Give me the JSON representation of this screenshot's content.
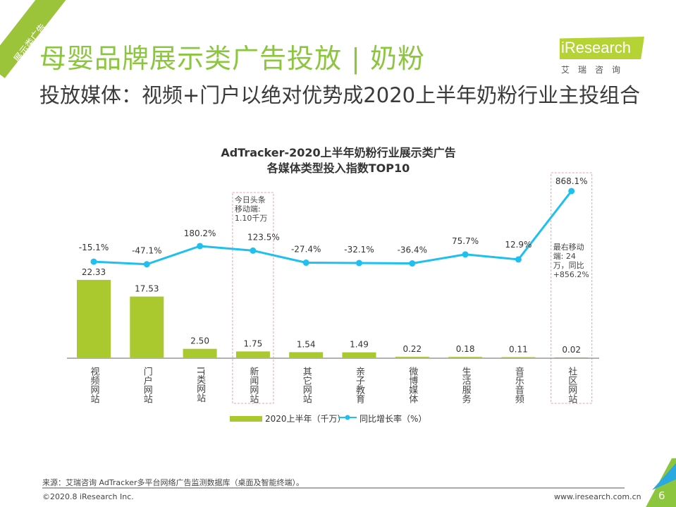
{
  "corner_tag": "展示类广告",
  "title": "母婴品牌展示类广告投放 | 奶粉",
  "subtitle": "投放媒体：视频+门户以绝对优势成2020上半年奶粉行业主投组合",
  "logo": {
    "text": "iResearch",
    "cn": "艾瑞咨询"
  },
  "chart_data": {
    "type": "bar+line",
    "title": [
      "AdTracker-2020上半年奶粉行业展示类广告",
      "各媒体类型投入指数TOP10"
    ],
    "categories": [
      "视频网站",
      "门户网站",
      "IT类网站",
      "新闻网站",
      "其它网站",
      "亲子教育",
      "微博媒体",
      "生活服务",
      "音乐音频",
      "社区网站"
    ],
    "series": [
      {
        "name": "2020上半年（千万）",
        "type": "bar",
        "color": "#a9c92e",
        "values": [
          22.33,
          17.53,
          2.5,
          1.75,
          1.54,
          1.49,
          0.22,
          0.18,
          0.11,
          0.02
        ],
        "labels": [
          "22.33",
          "17.53",
          "2.50",
          "1.75",
          "1.54",
          "1.49",
          "0.22",
          "0.18",
          "0.11",
          "0.02"
        ]
      },
      {
        "name": "同比增长率（%）",
        "type": "line",
        "color": "#1fc0ef",
        "values": [
          -15.1,
          -47.1,
          180.2,
          123.5,
          -27.4,
          -32.1,
          -36.4,
          75.7,
          12.9,
          868.1
        ],
        "labels": [
          "-15.1%",
          "-47.1%",
          "180.2%",
          "123.5%",
          "-27.4%",
          "-32.1%",
          "-36.4%",
          "75.7%",
          "12.9%",
          "868.1%"
        ]
      }
    ],
    "annotations": [
      {
        "category": "新闻网站",
        "lines": [
          "今日头条",
          "移动端:",
          "1.10千万"
        ]
      },
      {
        "category": "社区网站",
        "lines": [
          "最右移动",
          "端: 24",
          "万，同比",
          "+856.2%"
        ]
      }
    ],
    "legend": "bottom"
  },
  "footer": {
    "source": "来源：艾瑞咨询 AdTracker多平台网络广告监测数据库（桌面及智能终端）。",
    "copyright": "©2020.8 iResearch Inc.",
    "website": "www.iresearch.com.cn",
    "page": "6"
  }
}
